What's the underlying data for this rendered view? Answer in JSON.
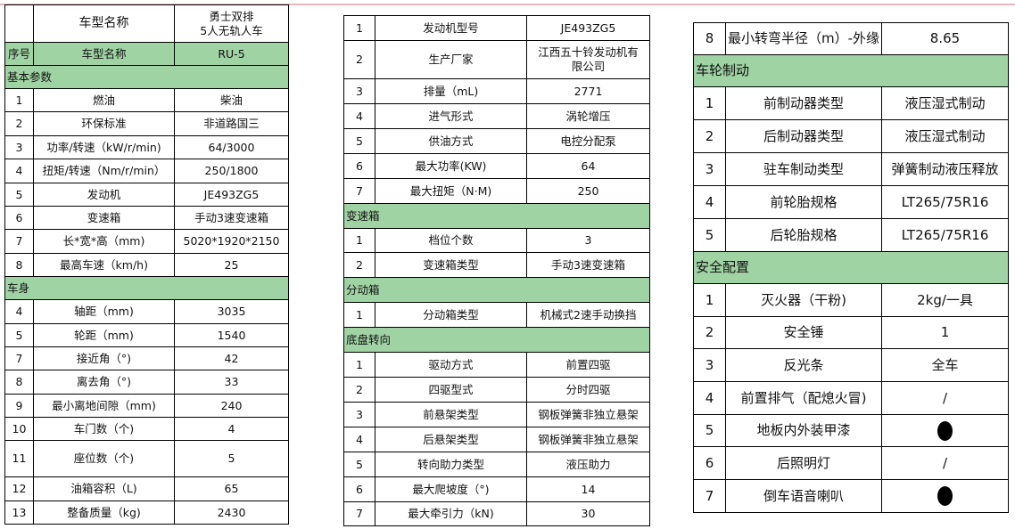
{
  "colors": {
    "section_bg": "#a0d3a4",
    "top_line": "#e3b7bf"
  },
  "table1": {
    "header": {
      "label": "车型名称",
      "value": "勇士双排\n5人无轨人车"
    },
    "rows": [
      {
        "type": "green",
        "no": "序号",
        "label": "车型名称",
        "value": "RU-5"
      },
      {
        "type": "section",
        "label": "基本参数"
      },
      {
        "no": "1",
        "label": "燃油",
        "value": "柴油"
      },
      {
        "no": "2",
        "label": "环保标准",
        "value": "非道路国三"
      },
      {
        "no": "3",
        "label": "功率/转速（kW/r/min)",
        "value": "64/3000"
      },
      {
        "no": "4",
        "label": "扭矩/转速（Nm/r/min）",
        "value": "250/1800"
      },
      {
        "no": "5",
        "label": "发动机",
        "value": "JE493ZG5"
      },
      {
        "no": "6",
        "label": "变速箱",
        "value": "手动3速变速箱"
      },
      {
        "no": "7",
        "label": "长*宽*高（mm)",
        "value": "5020*1920*2150"
      },
      {
        "no": "8",
        "label": "最高车速（km/h)",
        "value": "25"
      },
      {
        "type": "section",
        "label": "车身"
      },
      {
        "no": "4",
        "label": "轴距（mm)",
        "value": "3035"
      },
      {
        "no": "5",
        "label": "轮距（mm)",
        "value": "1540"
      },
      {
        "no": "7",
        "label": "接近角（°)",
        "value": "42"
      },
      {
        "no": "8",
        "label": "离去角（°)",
        "value": "33"
      },
      {
        "no": "9",
        "label": "最小离地间隙（mm)",
        "value": "240"
      },
      {
        "no": "10",
        "label": "车门数（个)",
        "value": "4"
      },
      {
        "no": "11",
        "label": "座位数（个)",
        "value": "5"
      },
      {
        "no": "12",
        "label": "油箱容积（L)",
        "value": "65"
      },
      {
        "no": "13",
        "label": "整备质量（kg)",
        "value": "2430"
      }
    ]
  },
  "table2": {
    "rows": [
      {
        "no": "1",
        "label": "发动机型号",
        "value": "JE493ZG5"
      },
      {
        "no": "2",
        "label": "生产厂家",
        "value": "江西五十铃发动机有\n限公司"
      },
      {
        "no": "3",
        "label": "排量（mL)",
        "value": "2771"
      },
      {
        "no": "4",
        "label": "进气形式",
        "value": "涡轮增压"
      },
      {
        "no": "5",
        "label": "供油方式",
        "value": "电控分配泵"
      },
      {
        "no": "6",
        "label": "最大功率(KW)",
        "value": "64"
      },
      {
        "no": "7",
        "label": "最大扭矩（N·M)",
        "value": "250"
      },
      {
        "type": "section",
        "label": "变速箱"
      },
      {
        "no": "1",
        "label": "档位个数",
        "value": "3"
      },
      {
        "no": "2",
        "label": "变速箱类型",
        "value": "手动3速变速箱"
      },
      {
        "type": "section",
        "label": "分动箱"
      },
      {
        "no": "1",
        "label": "分动箱类型",
        "value": "机械式2速手动换挡"
      },
      {
        "type": "section",
        "label": "底盘转向"
      },
      {
        "no": "1",
        "label": "驱动方式",
        "value": "前置四驱"
      },
      {
        "no": "2",
        "label": "四驱型式",
        "value": "分时四驱"
      },
      {
        "no": "3",
        "label": "前悬架类型",
        "value": "钢板弹簧非独立悬架"
      },
      {
        "no": "4",
        "label": "后悬架类型",
        "value": "钢板弹簧非独立悬架"
      },
      {
        "no": "5",
        "label": "转向助力类型",
        "value": "液压助力"
      },
      {
        "no": "6",
        "label": "最大爬坡度（°)",
        "value": "14"
      },
      {
        "no": "7",
        "label": "最大牵引力（kN)",
        "value": "30"
      }
    ]
  },
  "table3": {
    "rows": [
      {
        "no": "8",
        "label": "最小转弯半径（m）-外缘",
        "value": "8.65"
      },
      {
        "type": "section",
        "label": "车轮制动"
      },
      {
        "no": "1",
        "label": "前制动器类型",
        "value": "液压湿式制动"
      },
      {
        "no": "2",
        "label": "后制动器类型",
        "value": "液压湿式制动"
      },
      {
        "no": "3",
        "label": "驻车制动类型",
        "value": "弹簧制动液压释放"
      },
      {
        "no": "4",
        "label": "前轮胎规格",
        "value": "LT265/75R16"
      },
      {
        "no": "5",
        "label": "后轮胎规格",
        "value": "LT265/75R16"
      },
      {
        "type": "section",
        "label": "安全配置"
      },
      {
        "no": "1",
        "label": "灭火器（干粉)",
        "value": "2kg/一具"
      },
      {
        "no": "2",
        "label": "安全锤",
        "value": "1"
      },
      {
        "no": "3",
        "label": "反光条",
        "value": "全车"
      },
      {
        "no": "4",
        "label": "前置排气（配熄火冒)",
        "value": "/"
      },
      {
        "no": "5",
        "label": "地板内外装甲漆",
        "value": "",
        "icon": "filled-circle-icon"
      },
      {
        "no": "6",
        "label": "后照明灯",
        "value": "/"
      },
      {
        "no": "7",
        "label": "倒车语音喇叭",
        "value": "",
        "icon": "filled-circle-icon"
      }
    ]
  }
}
